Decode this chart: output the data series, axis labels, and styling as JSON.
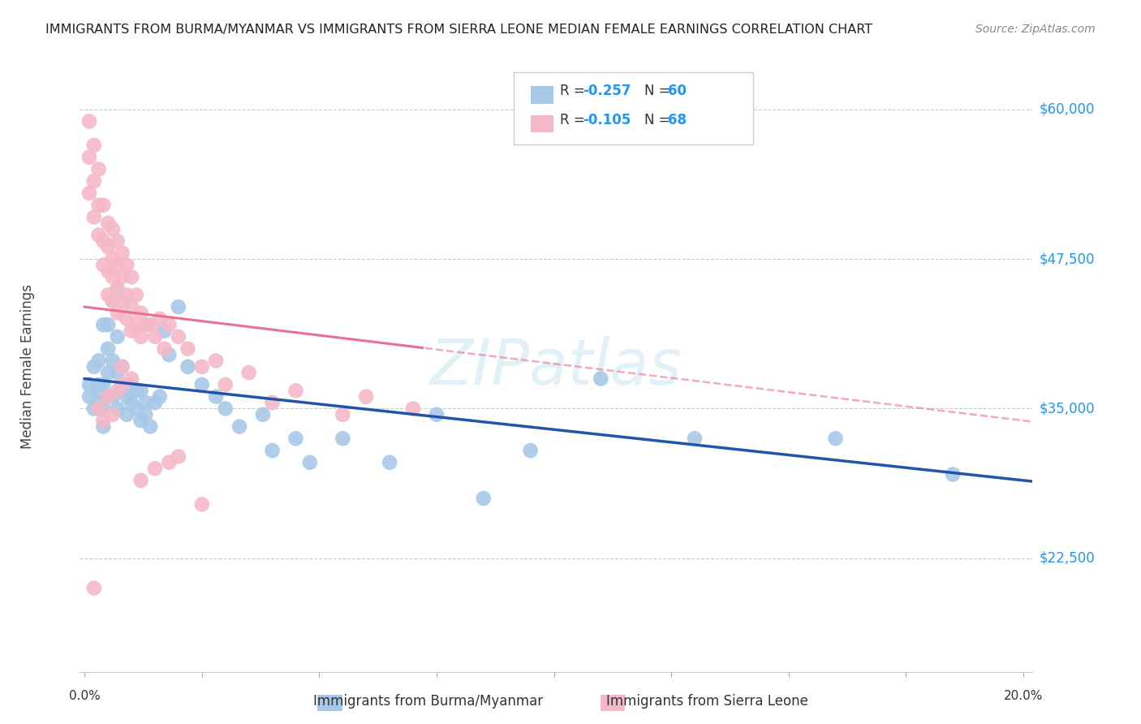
{
  "title": "IMMIGRANTS FROM BURMA/MYANMAR VS IMMIGRANTS FROM SIERRA LEONE MEDIAN FEMALE EARNINGS CORRELATION CHART",
  "source": "Source: ZipAtlas.com",
  "ylabel": "Median Female Earnings",
  "ytick_labels": [
    "$60,000",
    "$47,500",
    "$35,000",
    "$22,500"
  ],
  "ytick_values": [
    60000,
    47500,
    35000,
    22500
  ],
  "ymin": 13000,
  "ymax": 64000,
  "xmin": -0.001,
  "xmax": 0.202,
  "color_blue": "#a8c8e8",
  "color_pink": "#f4b8c8",
  "color_blue_line": "#2255aa",
  "color_pink_line": "#e87090",
  "color_axis_label": "#2196F3",
  "watermark": "ZIPatlas",
  "blue_points_x": [
    0.001,
    0.001,
    0.002,
    0.002,
    0.003,
    0.003,
    0.003,
    0.003,
    0.004,
    0.004,
    0.004,
    0.004,
    0.005,
    0.005,
    0.005,
    0.005,
    0.006,
    0.006,
    0.006,
    0.007,
    0.007,
    0.007,
    0.007,
    0.008,
    0.008,
    0.009,
    0.009,
    0.009,
    0.01,
    0.01,
    0.011,
    0.011,
    0.012,
    0.012,
    0.013,
    0.013,
    0.014,
    0.015,
    0.016,
    0.017,
    0.018,
    0.02,
    0.022,
    0.025,
    0.028,
    0.03,
    0.033,
    0.038,
    0.04,
    0.045,
    0.048,
    0.055,
    0.065,
    0.075,
    0.085,
    0.095,
    0.11,
    0.13,
    0.16,
    0.185
  ],
  "blue_points_y": [
    37000,
    36000,
    38500,
    35000,
    39000,
    37000,
    35500,
    36500,
    42000,
    37000,
    35000,
    33500,
    42000,
    40000,
    38000,
    36000,
    44000,
    39000,
    36000,
    45000,
    41000,
    38000,
    35000,
    38500,
    36500,
    37000,
    36000,
    34500,
    37000,
    35500,
    36500,
    35000,
    36500,
    34000,
    35500,
    34500,
    33500,
    35500,
    36000,
    41500,
    39500,
    43500,
    38500,
    37000,
    36000,
    35000,
    33500,
    34500,
    31500,
    32500,
    30500,
    32500,
    30500,
    34500,
    27500,
    31500,
    37500,
    32500,
    32500,
    29500
  ],
  "pink_points_x": [
    0.001,
    0.001,
    0.001,
    0.002,
    0.002,
    0.002,
    0.003,
    0.003,
    0.003,
    0.004,
    0.004,
    0.004,
    0.005,
    0.005,
    0.005,
    0.005,
    0.006,
    0.006,
    0.006,
    0.006,
    0.007,
    0.007,
    0.007,
    0.007,
    0.008,
    0.008,
    0.008,
    0.009,
    0.009,
    0.009,
    0.01,
    0.01,
    0.01,
    0.011,
    0.011,
    0.012,
    0.012,
    0.013,
    0.014,
    0.015,
    0.016,
    0.017,
    0.018,
    0.02,
    0.022,
    0.025,
    0.028,
    0.03,
    0.035,
    0.04,
    0.045,
    0.055,
    0.06,
    0.07,
    0.015,
    0.018,
    0.02,
    0.025,
    0.012,
    0.008,
    0.003,
    0.002,
    0.004,
    0.006,
    0.008,
    0.01,
    0.007,
    0.005
  ],
  "pink_points_y": [
    59000,
    56000,
    53000,
    57000,
    54000,
    51000,
    55000,
    52000,
    49500,
    52000,
    49000,
    47000,
    50500,
    48500,
    46500,
    44500,
    50000,
    47500,
    46000,
    44000,
    49000,
    47000,
    45000,
    43000,
    48000,
    46000,
    44000,
    47000,
    44500,
    42500,
    46000,
    43500,
    41500,
    44500,
    42000,
    43000,
    41000,
    42000,
    42000,
    41000,
    42500,
    40000,
    42000,
    41000,
    40000,
    38500,
    39000,
    37000,
    38000,
    35500,
    36500,
    34500,
    36000,
    35000,
    30000,
    30500,
    31000,
    27000,
    29000,
    37000,
    35000,
    20000,
    34000,
    34500,
    38500,
    37500,
    36500,
    36000
  ]
}
